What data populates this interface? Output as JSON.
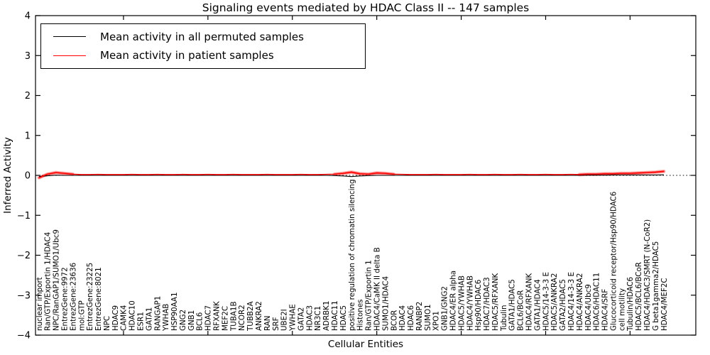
{
  "title": "Signaling events mediated by HDAC Class II -- 147 samples",
  "legend": {
    "entries": [
      {
        "label": "Mean activity in all permuted samples",
        "color": "#000000"
      },
      {
        "label": "Mean activity in patient samples",
        "color": "#ff0000"
      }
    ]
  },
  "chart_data": {
    "type": "line",
    "title": "Signaling events mediated by HDAC Class II -- 147 samples",
    "xlabel": "Cellular Entities",
    "ylabel": "Inferred Activity",
    "ylim": [
      -4,
      4
    ],
    "yticks": [
      4,
      3,
      2,
      1,
      0,
      -1,
      -2,
      -3,
      -4
    ],
    "grid": false,
    "zero_line": "dotted",
    "legend_position": "upper left",
    "categories": [
      "nuclear import",
      "Ran/GTP/Exportin 1/HDAC4",
      "NPC/RanGAP1/SUMO1/Ubc9",
      "EntrezGene:9972",
      "EntrezGene:23636",
      "mol:GTP",
      "EntrezGene:23225",
      "EntrezGene:8021",
      "NPC",
      "HDAC9",
      "CAMK4",
      "HDAC10",
      "ESR1",
      "GATA1",
      "RANGAP1",
      "YWHAB",
      "HSP90AA1",
      "GNG2",
      "GNB1",
      "BCL6",
      "HDAC7",
      "RFXANK",
      "MEF2C",
      "TUBA1B",
      "NCOR2",
      "TUBB2A",
      "ANKRA2",
      "RAN",
      "SRF",
      "UBE2I",
      "YWHAE",
      "GATA2",
      "HDAC3",
      "NR3C1",
      "ADRBK1",
      "HDAC11",
      "HDAC5",
      "positive regulation of chromatin silencing",
      "Histones",
      "Ran/GTP/Exportin 1",
      "HDAC4/CaMK II delta B",
      "SUMO1/HDAC4",
      "BCOR",
      "HDAC4",
      "HDAC6",
      "RANBP2",
      "SUMO1",
      "XPO1",
      "GNB1/GNG2",
      "HDAC4/ER alpha",
      "HDAC5/YWHAB",
      "HDAC4/YWHAB",
      "Hsp90/HDAC6",
      "HDAC7/HDAC3",
      "HDAC5/RFXANK",
      "Tubulin",
      "GATA1/HDAC5",
      "BCL6/BCoR",
      "HDAC4/RFXANK",
      "GATA1/HDAC4",
      "HDAC5/14-3-3 E",
      "HDAC5/ANKRA2",
      "GATA2/HDAC5",
      "HDAC4/14-3-3 E",
      "HDAC4/ANKRA2",
      "HDAC4/Ubc9",
      "HDAC6/HDAC11",
      "HDAC4/SRF",
      "Glucocorticoid receptor/Hsp90/HDAC6",
      "cell motility",
      "Tubulin/HDAC6",
      "HDAC5/BCL6/BCoR",
      "HDAC4/HDAC3/SMRT (N-CoR2)",
      "G beta1gamma2/HDAC5",
      "HDAC4/MEF2C"
    ],
    "series": [
      {
        "name": "Mean activity in all permuted samples",
        "color": "#000000",
        "values": [
          -0.03,
          -0.01,
          0.005,
          0.0,
          0.0,
          0,
          0,
          0,
          0,
          0,
          0,
          0,
          0,
          0,
          0,
          0,
          0,
          0,
          0,
          0,
          0,
          0,
          0,
          0,
          0,
          0,
          0,
          0,
          0,
          0,
          0,
          0,
          0,
          0,
          0,
          -0.005,
          -0.015,
          -0.03,
          -0.015,
          -0.005,
          0,
          0,
          0,
          0,
          0,
          0,
          0,
          0,
          0,
          0,
          0,
          0,
          0,
          0,
          0,
          0,
          0,
          0,
          0,
          0,
          0,
          0,
          0,
          0,
          0,
          0.005,
          0.005,
          0.005,
          0.01,
          0.01,
          0.01,
          0.01,
          0.01,
          0.01,
          0.015
        ]
      },
      {
        "name": "Mean activity in patient samples",
        "color": "#ff0000",
        "values": [
          -0.06,
          0.03,
          0.07,
          0.05,
          0.03,
          0.02,
          0.02,
          0.025,
          0.02,
          0.02,
          0.02,
          0.025,
          0.02,
          0.02,
          0.025,
          0.02,
          0.02,
          0.025,
          0.02,
          0.02,
          0.025,
          0.02,
          0.02,
          0.025,
          0.02,
          0.02,
          0.02,
          0.025,
          0.02,
          0.02,
          0.02,
          0.025,
          0.02,
          0.02,
          0.025,
          0.03,
          0.05,
          0.08,
          0.04,
          0.03,
          0.06,
          0.05,
          0.03,
          0.025,
          0.02,
          0.02,
          0.02,
          0.025,
          0.02,
          0.02,
          0.02,
          0.025,
          0.02,
          0.02,
          0.025,
          0.02,
          0.02,
          0.025,
          0.02,
          0.02,
          0.025,
          0.02,
          0.02,
          0.025,
          0.02,
          0.03,
          0.03,
          0.04,
          0.04,
          0.05,
          0.05,
          0.06,
          0.07,
          0.08,
          0.1
        ]
      }
    ],
    "highlight_ranges": [
      [
        0,
        4
      ],
      [
        35,
        42
      ],
      [
        64,
        74
      ]
    ]
  }
}
